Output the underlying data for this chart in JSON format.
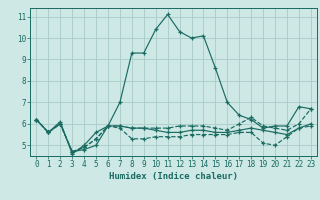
{
  "title": "",
  "xlabel": "Humidex (Indice chaleur)",
  "bg_color": "#cde8e5",
  "grid_color": "#aecfcc",
  "line_color": "#1a6b62",
  "xlim": [
    -0.5,
    23.5
  ],
  "ylim": [
    4.5,
    11.4
  ],
  "xticks": [
    0,
    1,
    2,
    3,
    4,
    5,
    6,
    7,
    8,
    9,
    10,
    11,
    12,
    13,
    14,
    15,
    16,
    17,
    18,
    19,
    20,
    21,
    22,
    23
  ],
  "yticks": [
    5,
    6,
    7,
    8,
    9,
    10,
    11
  ],
  "lines": [
    {
      "x": [
        0,
        1,
        2,
        3,
        4,
        5,
        6,
        7,
        8,
        9,
        10,
        11,
        12,
        13,
        14,
        15,
        16,
        17,
        18,
        19,
        20,
        21,
        22,
        23
      ],
      "y": [
        6.2,
        5.6,
        6.1,
        4.6,
        5.0,
        5.6,
        5.9,
        7.0,
        9.3,
        9.3,
        10.4,
        11.1,
        10.3,
        10.0,
        10.1,
        8.6,
        7.0,
        6.4,
        6.2,
        5.8,
        5.9,
        5.9,
        6.8,
        6.7
      ],
      "style": "-",
      "marker": "+"
    },
    {
      "x": [
        0,
        1,
        2,
        3,
        4,
        5,
        6,
        7,
        8,
        9,
        10,
        11,
        12,
        13,
        14,
        15,
        16,
        17,
        18,
        19,
        20,
        21,
        22,
        23
      ],
      "y": [
        6.2,
        5.6,
        6.0,
        4.7,
        4.8,
        5.0,
        5.9,
        5.9,
        5.8,
        5.8,
        5.7,
        5.6,
        5.6,
        5.7,
        5.7,
        5.6,
        5.6,
        5.7,
        5.8,
        5.7,
        5.6,
        5.5,
        5.8,
        6.0
      ],
      "style": "-",
      "marker": "+"
    },
    {
      "x": [
        0,
        1,
        2,
        3,
        4,
        5,
        6,
        7,
        8,
        9,
        10,
        11,
        12,
        13,
        14,
        15,
        16,
        17,
        18,
        19,
        20,
        21,
        22,
        23
      ],
      "y": [
        6.2,
        5.6,
        6.0,
        4.7,
        4.9,
        5.3,
        5.9,
        5.9,
        5.8,
        5.8,
        5.8,
        5.8,
        5.9,
        5.9,
        5.9,
        5.8,
        5.7,
        6.0,
        6.3,
        5.9,
        5.8,
        5.7,
        6.0,
        6.7
      ],
      "style": "--",
      "marker": "+"
    },
    {
      "x": [
        0,
        1,
        2,
        3,
        4,
        5,
        6,
        7,
        8,
        9,
        10,
        11,
        12,
        13,
        14,
        15,
        16,
        17,
        18,
        19,
        20,
        21,
        22,
        23
      ],
      "y": [
        6.2,
        5.6,
        6.0,
        4.7,
        4.9,
        5.3,
        5.9,
        5.8,
        5.3,
        5.3,
        5.4,
        5.4,
        5.4,
        5.5,
        5.5,
        5.5,
        5.5,
        5.6,
        5.6,
        5.1,
        5.0,
        5.4,
        5.8,
        5.9
      ],
      "style": "--",
      "marker": "+"
    }
  ]
}
